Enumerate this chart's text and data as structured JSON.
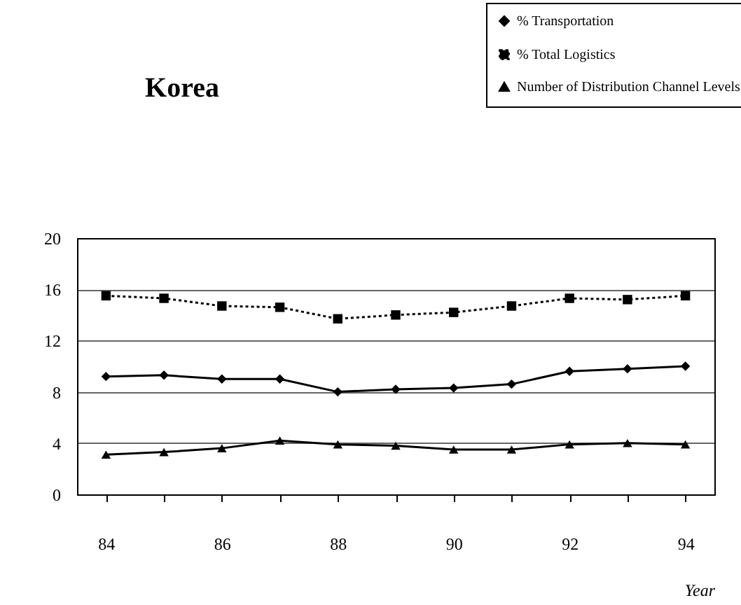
{
  "chart_data": {
    "type": "line",
    "title": "Korea",
    "xlabel": "Year",
    "x": [
      84,
      85,
      86,
      87,
      88,
      89,
      90,
      91,
      92,
      93,
      94
    ],
    "xlim": [
      83.5,
      94.5
    ],
    "xticks": [
      84,
      {
        "value": 85,
        "label": null
      },
      86,
      {
        "value": 87,
        "label": null
      },
      88,
      {
        "value": 89,
        "label": null
      },
      90,
      {
        "value": 91,
        "label": null
      },
      92,
      {
        "value": 93,
        "label": null
      },
      94
    ],
    "ylim": [
      0,
      20
    ],
    "yticks": [
      0,
      4,
      8,
      12,
      16,
      20
    ],
    "grid": "y",
    "legend": "top right",
    "series": [
      {
        "name": "% Transportation",
        "color": "#000000",
        "marker": "diamond",
        "line_style": "solid",
        "values": [
          9.2,
          9.3,
          9.0,
          9.0,
          8.0,
          8.2,
          8.3,
          8.6,
          9.6,
          9.8,
          10.0
        ]
      },
      {
        "name": "% Total Logistics",
        "color": "#000000",
        "marker": "square",
        "line_style": "dotted",
        "values": [
          15.5,
          15.3,
          14.7,
          14.6,
          13.7,
          14.0,
          14.2,
          14.7,
          15.3,
          15.2,
          15.5
        ]
      },
      {
        "name": "Number of Distribution Channel Levels",
        "color": "#000000",
        "marker": "triangle",
        "line_style": "solid",
        "values": [
          3.1,
          3.3,
          3.6,
          4.2,
          3.9,
          3.8,
          3.5,
          3.5,
          3.9,
          4.0,
          3.9
        ]
      }
    ]
  }
}
